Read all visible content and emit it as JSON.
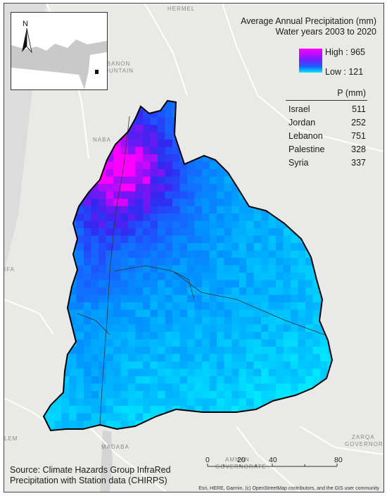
{
  "title": {
    "line1": "Average Annual Precipitation (mm)",
    "line2": "Water years 2003 to 2020"
  },
  "legend": {
    "high_label": "High : 965",
    "low_label": "Low : 121",
    "high_color": "#ff00ff",
    "low_color": "#00e8ff"
  },
  "table": {
    "header": "P (mm)",
    "rows": [
      {
        "country": "Israel",
        "value": "511"
      },
      {
        "country": "Jordan",
        "value": "252"
      },
      {
        "country": "Lebanon",
        "value": "751"
      },
      {
        "country": "Palestine",
        "value": "328"
      },
      {
        "country": "Syria",
        "value": "337"
      }
    ]
  },
  "north_arrow": "N",
  "source": {
    "line1": "Source: Climate Hazards Group InfraRed",
    "line2": "Precipitation with Station data (CHIRPS)"
  },
  "scale": {
    "ticks": [
      "0",
      "20",
      "40",
      "80 Kilometers"
    ]
  },
  "attribution": "Esri, HERE, Garmin, (c) OpenStreetMap contributors, and the GIS user community",
  "basemap_labels": {
    "lebanon_mountain": [
      "LEBANON",
      "MOUNTAIN"
    ],
    "hermel": "HERMEL",
    "amman": [
      "AMMAN",
      "GOVERNORATE"
    ],
    "madaba": "MADABA",
    "zarqa": [
      "ZARQA",
      "GOVERNOR"
    ],
    "naba": "NABA",
    "ifa": "IFA",
    "lem": "LEM"
  },
  "icons": [
    "north-arrow-icon",
    "location-marker-icon"
  ]
}
